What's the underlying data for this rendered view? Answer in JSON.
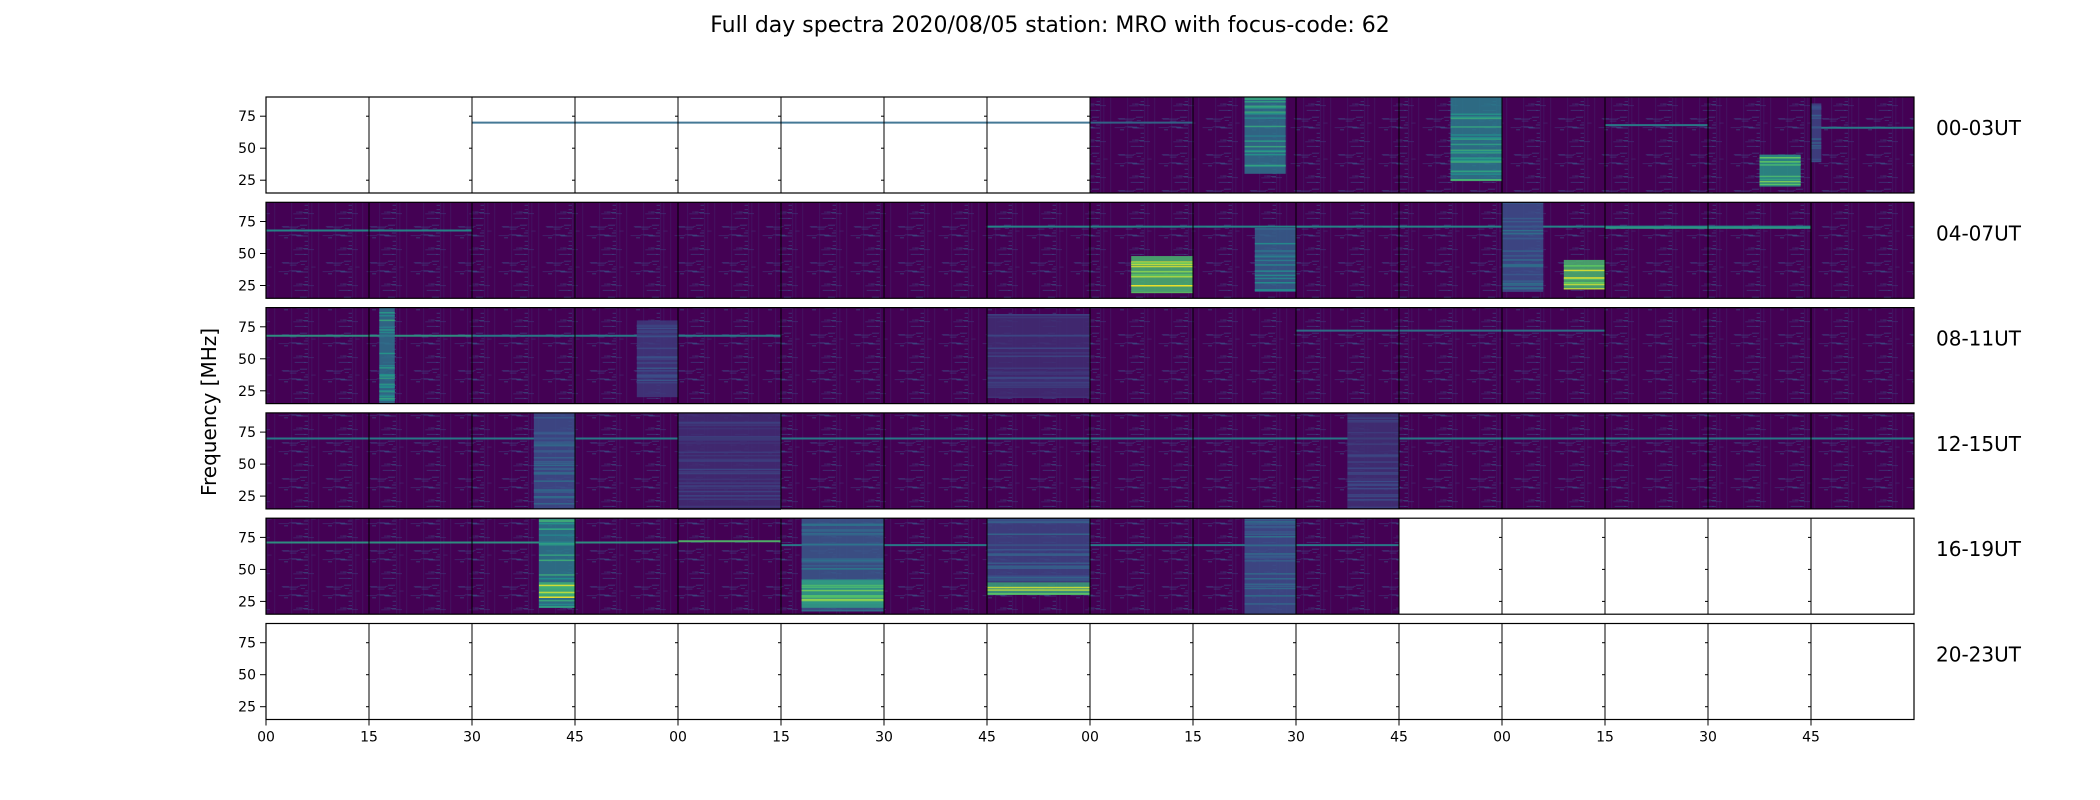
{
  "chart_data": {
    "type": "heatmap",
    "title": "Full day spectra 2020/08/05 station: MRO with focus-code: 62",
    "ylabel": "Frequency [MHz]",
    "xlabel": "",
    "y_ticks": [
      "25",
      "50",
      "75"
    ],
    "ylim": [
      15,
      90
    ],
    "x_ticks": [
      "00",
      "15",
      "30",
      "45",
      "00",
      "15",
      "30",
      "45",
      "00",
      "15",
      "30",
      "45",
      "00",
      "15",
      "30",
      "45"
    ],
    "panels_per_row": 16,
    "panel_minutes": 15,
    "colormap": [
      "#440154",
      "#3b528b",
      "#21918c",
      "#5ec962",
      "#fde725"
    ],
    "rows": [
      {
        "label": "00-03UT",
        "data_start_panel": 8,
        "data_end_panel": 16,
        "lines": [
          [
            9,
            70,
            2,
            0.35
          ],
          [
            13,
            68,
            14,
            0.45
          ],
          [
            15,
            66,
            16,
            0.45
          ]
        ],
        "bursts": [
          [
            9,
            0.5,
            0.9,
            30,
            90,
            0.55
          ],
          [
            11,
            0.5,
            1.0,
            25,
            90,
            0.6
          ],
          [
            14,
            0.5,
            0.9,
            20,
            45,
            0.75
          ],
          [
            15,
            0.0,
            0.1,
            40,
            85,
            0.3
          ]
        ]
      },
      {
        "label": "04-07UT",
        "data_start_panel": 0,
        "data_end_panel": 16,
        "lines": [
          [
            0,
            68,
            2,
            0.5
          ],
          [
            7,
            71,
            15,
            0.5
          ],
          [
            13,
            70,
            15,
            0.55
          ]
        ],
        "bursts": [
          [
            8,
            0.4,
            1.0,
            20,
            48,
            0.95
          ],
          [
            9,
            0.6,
            1.0,
            20,
            70,
            0.45
          ],
          [
            12,
            0.0,
            0.4,
            20,
            90,
            0.35
          ],
          [
            12,
            0.6,
            1.0,
            22,
            45,
            0.95
          ]
        ]
      },
      {
        "label": "08-11UT",
        "data_start_panel": 0,
        "data_end_panel": 16,
        "lines": [
          [
            0,
            68,
            2,
            0.55
          ],
          [
            2,
            68,
            5,
            0.45
          ],
          [
            10,
            72,
            13,
            0.4
          ]
        ],
        "bursts": [
          [
            1,
            0.1,
            0.25,
            15,
            90,
            0.55
          ],
          [
            3,
            0.6,
            1.0,
            20,
            80,
            0.25
          ],
          [
            7,
            0.0,
            1.0,
            20,
            85,
            0.2
          ]
        ]
      },
      {
        "label": "12-15UT",
        "data_start_panel": 0,
        "data_end_panel": 16,
        "lines": [
          [
            0,
            70,
            16,
            0.45
          ]
        ],
        "bursts": [
          [
            2,
            0.6,
            1.0,
            15,
            90,
            0.35
          ],
          [
            4,
            0.0,
            1.0,
            15,
            90,
            0.2
          ],
          [
            10,
            0.5,
            1.0,
            15,
            90,
            0.22
          ]
        ]
      },
      {
        "label": "16-19UT",
        "data_start_panel": 0,
        "data_end_panel": 11,
        "lines": [
          [
            0,
            71,
            4,
            0.55
          ],
          [
            4,
            72,
            5,
            0.7
          ],
          [
            5,
            69,
            11,
            0.45
          ]
        ],
        "bursts": [
          [
            2,
            0.65,
            1.0,
            20,
            90,
            0.6
          ],
          [
            2,
            0.65,
            1.0,
            28,
            40,
            0.9
          ],
          [
            5,
            0.2,
            1.0,
            18,
            90,
            0.4
          ],
          [
            5,
            0.2,
            1.0,
            20,
            42,
            0.8
          ],
          [
            7,
            0.0,
            1.0,
            30,
            40,
            0.85
          ],
          [
            7,
            0.0,
            1.0,
            40,
            90,
            0.3
          ],
          [
            9,
            0.5,
            1.0,
            15,
            90,
            0.35
          ]
        ]
      },
      {
        "label": "20-23UT",
        "data_start_panel": 16,
        "data_end_panel": 16,
        "lines": [],
        "bursts": []
      }
    ]
  }
}
